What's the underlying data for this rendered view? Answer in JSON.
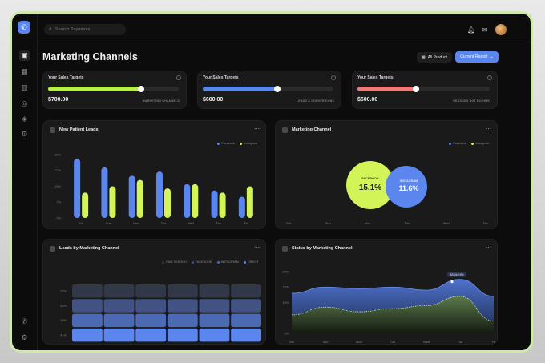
{
  "header": {
    "search_placeholder": "Search Payments",
    "page_title": "Marketing Channels",
    "all_product_label": "All Product",
    "current_report_label": "Current Report"
  },
  "targets": [
    {
      "title": "Your Sales Targets",
      "value": "$700.00",
      "label": "MARKETING CHANNELS",
      "progress": 0.71,
      "color": "#b8f04a"
    },
    {
      "title": "Your Sales Targets",
      "value": "$600.00",
      "label": "LEADS & CONVERSIONS",
      "progress": 0.57,
      "color": "#5b86ee"
    },
    {
      "title": "Your Sales Targets",
      "value": "$500.00",
      "label": "REASONS NOT BOOKED",
      "progress": 0.44,
      "color": "#ef7a7a"
    }
  ],
  "panels": {
    "new_patient_leads": "New Patient Leads",
    "marketing_channel": "Marketing Channel",
    "leads_by_channel": "Leads by Marketing Channel",
    "status_by_channel": "Status by Marketing Channel"
  },
  "legend": {
    "facebook": "Facebook",
    "instagram": "Instagram"
  },
  "heat_legend": [
    "PAID SEARCH",
    "FACEBOOK",
    "INSTAGRAM",
    "DIRECT"
  ],
  "days": [
    "Sat",
    "Sun",
    "Mon",
    "Tue",
    "Wed",
    "Thu",
    "Fri"
  ],
  "days_venn": [
    "Sat",
    "Sun",
    "Mon",
    "Tue",
    "Wed",
    "Thu"
  ],
  "venn": {
    "facebook_label": "FACEBOOK",
    "facebook_value": "15.1%",
    "instagram_label": "INSTAGRAM",
    "instagram_value": "11.6%"
  },
  "colors": {
    "blue": "#5b86ee",
    "green": "#d3f458"
  },
  "chart_data": [
    {
      "type": "bar",
      "title": "New Patient Leads",
      "categories": [
        "Sat",
        "Sun",
        "Mon",
        "Tue",
        "Wed",
        "Thu",
        "Fri"
      ],
      "ytick_labels": [
        "0%",
        "7%",
        "15%",
        "22%",
        "30%"
      ],
      "ylim": [
        0,
        30
      ],
      "series": [
        {
          "name": "Facebook",
          "values": [
            28,
            24,
            20,
            22,
            16,
            13,
            10
          ]
        },
        {
          "name": "Instagram",
          "values": [
            12,
            15,
            18,
            14,
            16,
            12,
            15
          ]
        }
      ]
    },
    {
      "type": "heatmap",
      "title": "Leads by Marketing Channel",
      "categories": [
        "Sat",
        "Sun",
        "Mon",
        "Tue",
        "Wed",
        "Thu"
      ],
      "row_labels": [
        "82%",
        "64%",
        "96%",
        "41%"
      ],
      "rows": [
        {
          "label": "82%",
          "intensity": 0.15
        },
        {
          "label": "64%",
          "intensity": 0.45
        },
        {
          "label": "96%",
          "intensity": 0.7
        },
        {
          "label": "41%",
          "intensity": 1.0
        }
      ]
    },
    {
      "type": "area",
      "title": "Status by Marketing Channel",
      "categories": [
        "Sat",
        "Sun",
        "Mon",
        "Tue",
        "Wed",
        "Thu",
        "Fri"
      ],
      "ytick_labels": [
        "0%",
        "10%",
        "15%",
        "20%"
      ],
      "ylim": [
        0,
        20
      ],
      "tooltip": {
        "x": "Thu",
        "text": "$200k  +5%"
      },
      "series": [
        {
          "name": "Blue",
          "values": [
            13,
            15,
            14.5,
            15,
            14,
            17.5,
            12
          ]
        },
        {
          "name": "Green",
          "values": [
            6,
            8.5,
            7,
            8,
            9,
            12,
            4
          ]
        }
      ]
    }
  ]
}
